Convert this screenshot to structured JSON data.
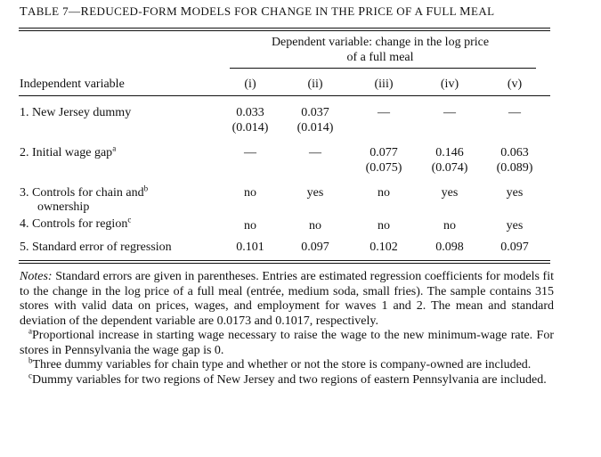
{
  "table": {
    "number": "Table 7",
    "title_parts": [
      "T",
      "ABLE 7—",
      "R",
      "EDUCED-",
      "F",
      "ORM ",
      "M",
      "ODELS FOR ",
      "C",
      "HANGE IN THE ",
      "P",
      "RICE OF A ",
      "F",
      "ULL ",
      "M",
      "EAL"
    ],
    "dependent_variable_line1": "Dependent variable: change in the log price",
    "dependent_variable_line2": "of a full meal",
    "independent_header": "Independent variable",
    "columns": [
      "(i)",
      "(ii)",
      "(iii)",
      "(iv)",
      "(v)"
    ],
    "rows": [
      {
        "label": "1. New Jersey dummy",
        "values": [
          "0.033",
          "0.037",
          "—",
          "—",
          "—"
        ],
        "se": [
          "(0.014)",
          "(0.014)",
          "",
          "",
          ""
        ]
      },
      {
        "label": "2. Initial wage gap",
        "label_sup": "a",
        "values": [
          "—",
          "—",
          "0.077",
          "0.146",
          "0.063"
        ],
        "se": [
          "",
          "",
          "(0.075)",
          "(0.074)",
          "(0.089)"
        ]
      },
      {
        "label": "3. Controls for chain and",
        "label_sup": "b",
        "label_line2": "ownership",
        "values": [
          "no",
          "yes",
          "no",
          "yes",
          "yes"
        ]
      },
      {
        "label": "4. Controls for region",
        "label_sup": "c",
        "values": [
          "no",
          "no",
          "no",
          "no",
          "yes"
        ]
      },
      {
        "label": "5. Standard error of regression",
        "values": [
          "0.101",
          "0.097",
          "0.102",
          "0.098",
          "0.097"
        ]
      }
    ]
  },
  "notes": {
    "lead": "Notes:",
    "body": " Standard errors are given in parentheses. Entries are estimated regression coefficients for models fit to the change in the log price of a full meal (entrée, medium soda, small fries). The sample contains 315 stores with valid data on prices, wages, and employment for waves 1 and 2. The mean and standard deviation of the dependent variable are 0.0173 and 0.1017, respectively.",
    "footnotes": [
      {
        "mark": "a",
        "text": "Proportional increase in starting wage necessary to raise the wage to the new minimum-wage rate. For stores in Pennsylvania the wage gap is 0."
      },
      {
        "mark": "b",
        "text": "Three dummy variables for chain type and whether or not the store is company-owned are included."
      },
      {
        "mark": "c",
        "text": "Dummy variables for two regions of New Jersey and two regions of eastern Pennsylvania are included."
      }
    ]
  }
}
